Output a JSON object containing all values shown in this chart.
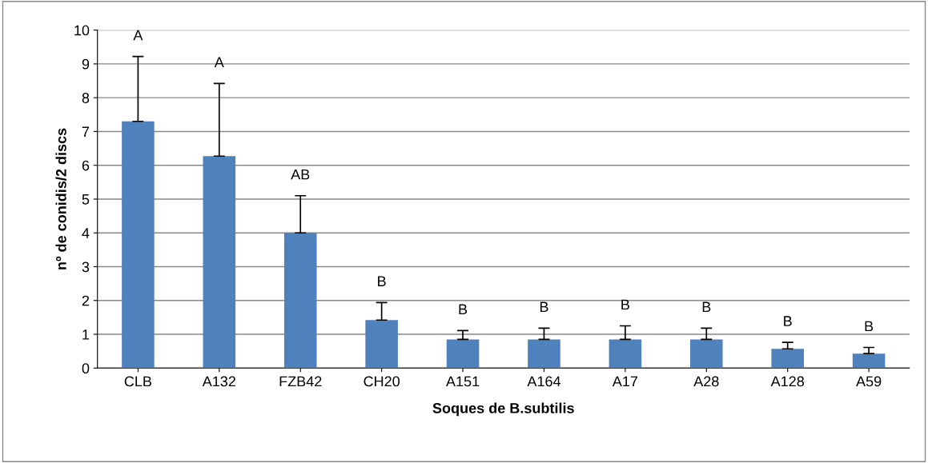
{
  "chart_data": {
    "type": "bar",
    "xlabel": "Soques de B.subtilis",
    "ylabel": "nº de conidis/2 discs",
    "categories": [
      "CLB",
      "A132",
      "FZB42",
      "CH20",
      "A151",
      "A164",
      "A17",
      "A28",
      "A128",
      "A59"
    ],
    "values": [
      7.3,
      6.27,
      4.0,
      1.42,
      0.85,
      0.85,
      0.85,
      0.85,
      0.57,
      0.43
    ],
    "errors": [
      [
        7.3,
        9.22
      ],
      [
        6.27,
        8.42
      ],
      [
        4.0,
        5.1
      ],
      [
        1.42,
        1.94
      ],
      [
        0.85,
        1.11
      ],
      [
        0.85,
        1.18
      ],
      [
        0.85,
        1.25
      ],
      [
        0.85,
        1.18
      ],
      [
        0.57,
        0.76
      ],
      [
        0.43,
        0.61
      ]
    ],
    "color": "#4f81bd",
    "ylim": [
      0,
      10
    ],
    "yticks": [
      0,
      1,
      2,
      3,
      4,
      5,
      6,
      7,
      8,
      9,
      10
    ],
    "grid": "y",
    "legend": false,
    "annotations": [
      {
        "text": "A",
        "x": "CLB",
        "y": 9.22
      },
      {
        "text": "A",
        "x": "A132",
        "y": 8.42
      },
      {
        "text": "AB",
        "x": "FZB42",
        "y": 5.1
      },
      {
        "text": "B",
        "x": "CH20",
        "y": 1.94
      },
      {
        "text": "B",
        "x": "A151",
        "y": 1.11
      },
      {
        "text": "B",
        "x": "A164",
        "y": 1.18
      },
      {
        "text": "B",
        "x": "A17",
        "y": 1.25
      },
      {
        "text": "B",
        "x": "A28",
        "y": 1.18
      },
      {
        "text": "B",
        "x": "A128",
        "y": 0.76
      },
      {
        "text": "B",
        "x": "A59",
        "y": 0.61
      }
    ]
  }
}
